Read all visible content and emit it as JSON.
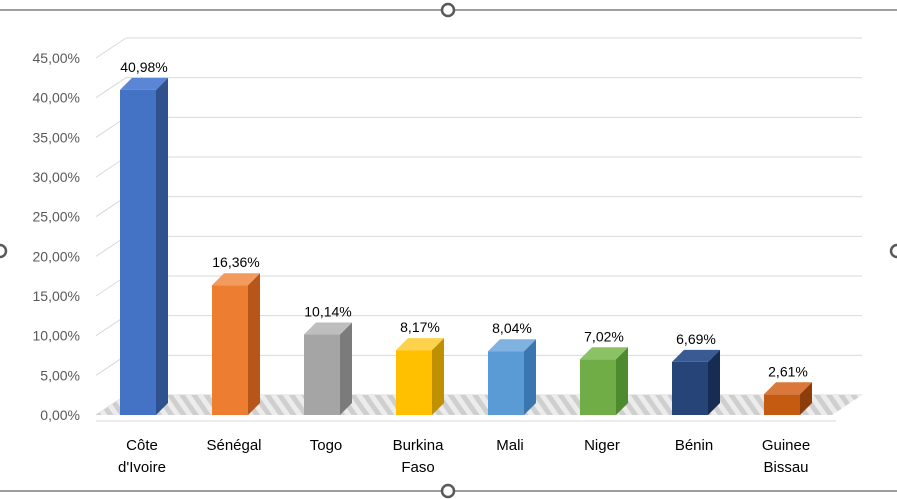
{
  "chart_data": {
    "type": "bar",
    "style": "3d-column",
    "categories": [
      [
        "Côte",
        "d'Ivoire"
      ],
      [
        "Sénégal"
      ],
      [
        "Togo"
      ],
      [
        "Burkina",
        "Faso"
      ],
      [
        "Mali"
      ],
      [
        "Niger"
      ],
      [
        "Bénin"
      ],
      [
        "Guinee",
        "Bissau"
      ]
    ],
    "values": [
      40.98,
      16.36,
      10.14,
      8.17,
      8.04,
      7.02,
      6.69,
      2.61
    ],
    "data_labels": [
      "40,98%",
      "16,36%",
      "10,14%",
      "8,17%",
      "8,04%",
      "7,02%",
      "6,69%",
      "2,61%"
    ],
    "yticks": [
      "0,00%",
      "5,00%",
      "10,00%",
      "15,00%",
      "20,00%",
      "25,00%",
      "30,00%",
      "35,00%",
      "40,00%",
      "45,00%"
    ],
    "ylim": [
      0,
      45
    ],
    "grid": true,
    "legend": "none",
    "bar_colors": [
      {
        "front": "#4472C4",
        "side": "#2F528F",
        "top": "#5B86D6"
      },
      {
        "front": "#ED7D31",
        "side": "#B8561A",
        "top": "#F39A5E"
      },
      {
        "front": "#A5A5A5",
        "side": "#7B7B7B",
        "top": "#BEBEBE"
      },
      {
        "front": "#FFC000",
        "side": "#BF9000",
        "top": "#FFD24D"
      },
      {
        "front": "#5B9BD5",
        "side": "#3A76B0",
        "top": "#7FB2E0"
      },
      {
        "front": "#70AD47",
        "side": "#4E8A2E",
        "top": "#8CC266"
      },
      {
        "front": "#264478",
        "side": "#172C52",
        "top": "#3A5A94"
      },
      {
        "front": "#C55A11",
        "side": "#8C3D0A",
        "top": "#D9783A"
      }
    ]
  }
}
